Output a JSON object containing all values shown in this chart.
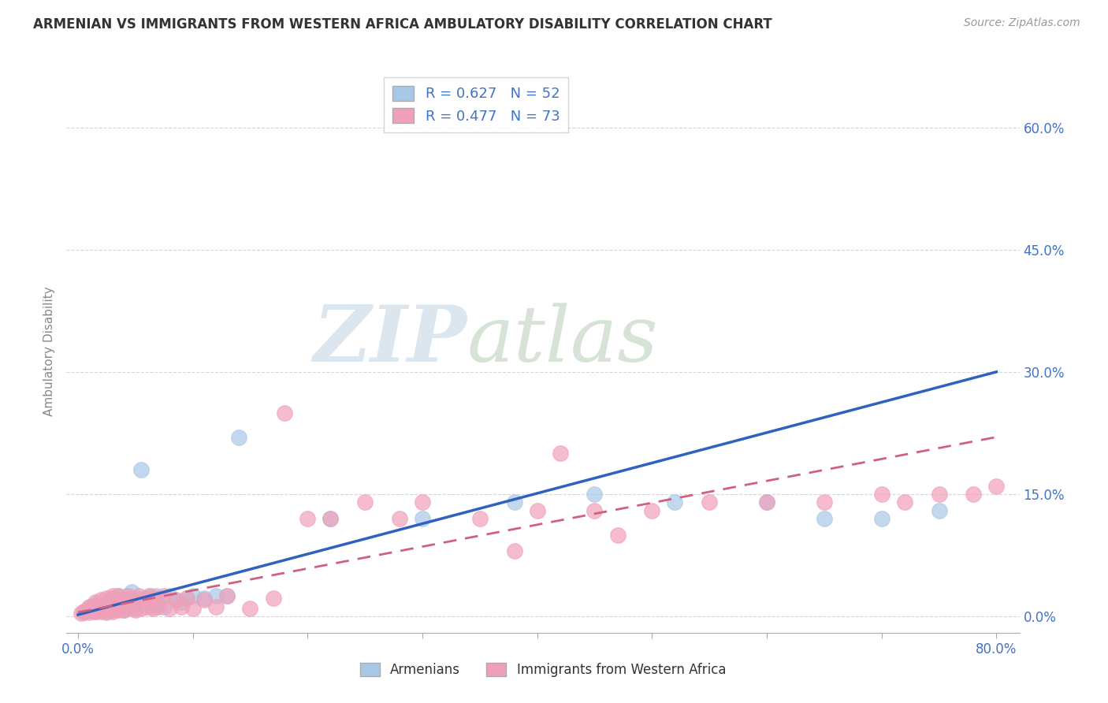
{
  "title": "ARMENIAN VS IMMIGRANTS FROM WESTERN AFRICA AMBULATORY DISABILITY CORRELATION CHART",
  "source_text": "Source: ZipAtlas.com",
  "ylabel": "Ambulatory Disability",
  "legend_label1": "Armenians",
  "legend_label2": "Immigrants from Western Africa",
  "r1": 0.627,
  "n1": 52,
  "r2": 0.477,
  "n2": 73,
  "color1": "#A8C8E8",
  "color2": "#F0A0B8",
  "line_color1": "#3060C0",
  "line_color2": "#D06080",
  "xlim": [
    -0.01,
    0.82
  ],
  "ylim": [
    -0.02,
    0.67
  ],
  "xtick_positions": [
    0.0,
    0.1,
    0.2,
    0.3,
    0.4,
    0.5,
    0.6,
    0.7,
    0.8
  ],
  "ytick_positions": [
    0.0,
    0.15,
    0.3,
    0.45,
    0.6
  ],
  "background_color": "#ffffff",
  "watermark_zip": "ZIP",
  "watermark_atlas": "atlas",
  "title_color": "#333333",
  "axis_tick_color": "#4472C4",
  "grid_color": "#CCCCCC",
  "scatter1_x": [
    0.005,
    0.008,
    0.01,
    0.012,
    0.015,
    0.015,
    0.018,
    0.02,
    0.022,
    0.023,
    0.025,
    0.025,
    0.028,
    0.028,
    0.03,
    0.03,
    0.032,
    0.035,
    0.035,
    0.038,
    0.04,
    0.042,
    0.043,
    0.045,
    0.047,
    0.05,
    0.05,
    0.055,
    0.06,
    0.062,
    0.065,
    0.068,
    0.07,
    0.075,
    0.08,
    0.085,
    0.09,
    0.095,
    0.1,
    0.11,
    0.12,
    0.13,
    0.14,
    0.22,
    0.3,
    0.38,
    0.45,
    0.52,
    0.6,
    0.65,
    0.7,
    0.75
  ],
  "scatter1_y": [
    0.005,
    0.008,
    0.01,
    0.012,
    0.006,
    0.015,
    0.01,
    0.012,
    0.014,
    0.01,
    0.005,
    0.018,
    0.01,
    0.02,
    0.008,
    0.022,
    0.012,
    0.01,
    0.025,
    0.015,
    0.008,
    0.02,
    0.025,
    0.015,
    0.03,
    0.01,
    0.022,
    0.18,
    0.02,
    0.025,
    0.012,
    0.025,
    0.015,
    0.012,
    0.025,
    0.02,
    0.018,
    0.022,
    0.025,
    0.022,
    0.025,
    0.025,
    0.22,
    0.12,
    0.12,
    0.14,
    0.15,
    0.14,
    0.14,
    0.12,
    0.12,
    0.13
  ],
  "scatter2_x": [
    0.003,
    0.005,
    0.007,
    0.008,
    0.01,
    0.01,
    0.012,
    0.013,
    0.015,
    0.015,
    0.017,
    0.018,
    0.02,
    0.02,
    0.022,
    0.023,
    0.025,
    0.025,
    0.027,
    0.028,
    0.03,
    0.03,
    0.032,
    0.033,
    0.035,
    0.035,
    0.038,
    0.04,
    0.042,
    0.043,
    0.045,
    0.047,
    0.05,
    0.053,
    0.055,
    0.058,
    0.06,
    0.063,
    0.065,
    0.068,
    0.07,
    0.075,
    0.08,
    0.085,
    0.09,
    0.095,
    0.1,
    0.11,
    0.12,
    0.13,
    0.15,
    0.17,
    0.18,
    0.2,
    0.22,
    0.25,
    0.28,
    0.3,
    0.35,
    0.4,
    0.45,
    0.5,
    0.55,
    0.6,
    0.65,
    0.7,
    0.72,
    0.75,
    0.78,
    0.8,
    0.42,
    0.47,
    0.38
  ],
  "scatter2_y": [
    0.004,
    0.006,
    0.007,
    0.008,
    0.005,
    0.012,
    0.008,
    0.01,
    0.006,
    0.018,
    0.008,
    0.012,
    0.006,
    0.02,
    0.008,
    0.015,
    0.006,
    0.022,
    0.01,
    0.015,
    0.006,
    0.025,
    0.01,
    0.018,
    0.008,
    0.025,
    0.012,
    0.008,
    0.02,
    0.025,
    0.01,
    0.022,
    0.008,
    0.025,
    0.01,
    0.022,
    0.012,
    0.025,
    0.01,
    0.022,
    0.012,
    0.025,
    0.01,
    0.02,
    0.012,
    0.022,
    0.01,
    0.02,
    0.012,
    0.025,
    0.01,
    0.022,
    0.25,
    0.12,
    0.12,
    0.14,
    0.12,
    0.14,
    0.12,
    0.13,
    0.13,
    0.13,
    0.14,
    0.14,
    0.14,
    0.15,
    0.14,
    0.15,
    0.15,
    0.16,
    0.2,
    0.1,
    0.08
  ]
}
